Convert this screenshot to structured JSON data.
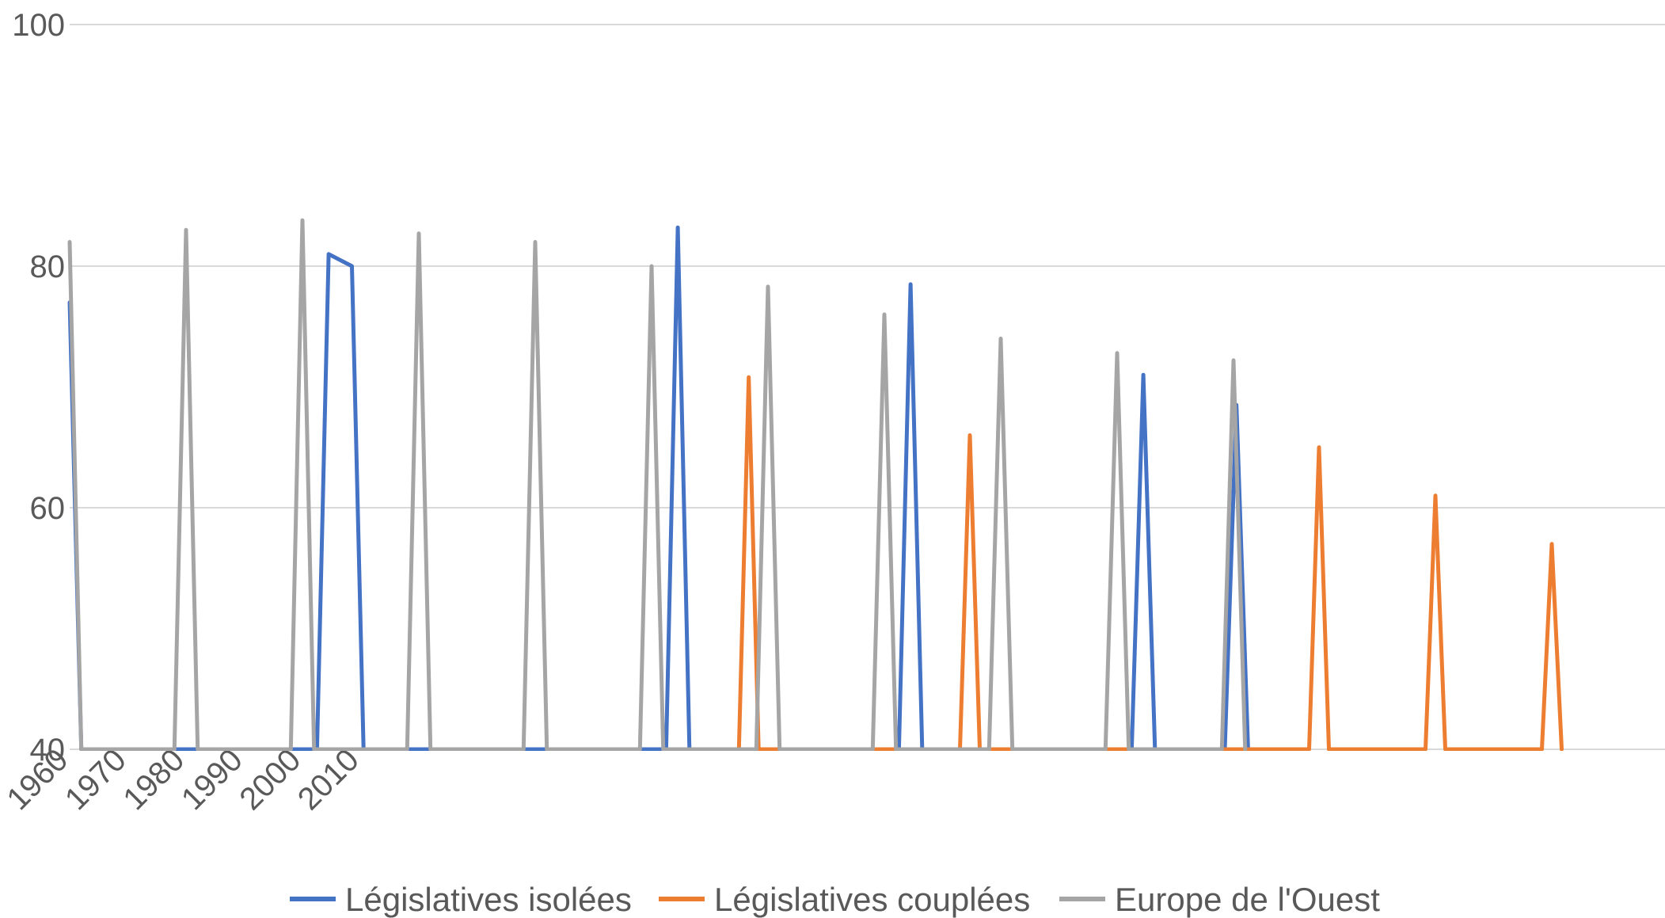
{
  "chart_data": {
    "type": "line",
    "title": "",
    "xlabel": "",
    "ylabel": "",
    "ylim": [
      40,
      100
    ],
    "y_ticks": [
      "40",
      "60",
      "80",
      "100"
    ],
    "x_tick_labels": [
      "1960",
      "1970",
      "1980",
      "1990",
      "2000",
      "2010"
    ],
    "grid": "horizontal",
    "legend_position": "bottom",
    "note": "Series drop to the axis minimum (40) between observations; values below list each rise-peak-fall spike.",
    "series": [
      {
        "name": "Législatives isolées",
        "color": "#4472c4",
        "points": [
          [
            1960.0,
            77
          ],
          [
            1962.0,
            40
          ],
          [
            2002.5,
            40
          ],
          [
            2004.5,
            81
          ],
          [
            2008.5,
            80
          ],
          [
            2010.5,
            40
          ],
          [
            2062.5,
            40
          ],
          [
            2064.5,
            83.2
          ],
          [
            2066.5,
            40
          ],
          [
            2102.5,
            40
          ],
          [
            2104.5,
            78.5
          ],
          [
            2106.5,
            40
          ],
          [
            2142.5,
            40
          ],
          [
            2144.5,
            71
          ],
          [
            2146.5,
            40
          ],
          [
            2158.5,
            40
          ],
          [
            2160.5,
            68.5
          ],
          [
            2162.5,
            40
          ]
        ]
      },
      {
        "name": "Législatives couplées",
        "color": "#ed7d31",
        "points": [
          [
            2075.0,
            40
          ],
          [
            2076.7,
            70.8
          ],
          [
            2078.4,
            40
          ],
          [
            2113.0,
            40
          ],
          [
            2114.7,
            66
          ],
          [
            2116.4,
            40
          ],
          [
            2173.0,
            40
          ],
          [
            2174.7,
            65
          ],
          [
            2176.4,
            40
          ],
          [
            2193.0,
            40
          ],
          [
            2194.7,
            61
          ],
          [
            2196.4,
            40
          ],
          [
            2213.0,
            40
          ],
          [
            2214.7,
            57
          ],
          [
            2216.4,
            40
          ]
        ]
      },
      {
        "name": "Europe de l'Ouest",
        "color": "#a5a5a5",
        "points": [
          [
            1960.0,
            82
          ],
          [
            1962.0,
            40
          ],
          [
            1978.0,
            40
          ],
          [
            1980.0,
            83
          ],
          [
            1982.0,
            40
          ],
          [
            1998.0,
            40
          ],
          [
            2000.0,
            83.8
          ],
          [
            2002.0,
            40
          ],
          [
            2018.0,
            40
          ],
          [
            2020.0,
            82.7
          ],
          [
            2022.0,
            40
          ],
          [
            2038.0,
            40
          ],
          [
            2040.0,
            82
          ],
          [
            2042.0,
            40
          ],
          [
            2058.0,
            40
          ],
          [
            2060.0,
            80
          ],
          [
            2062.0,
            40
          ],
          [
            2078.0,
            40
          ],
          [
            2080.0,
            78.3
          ],
          [
            2082.0,
            40
          ],
          [
            2098.0,
            40
          ],
          [
            2100.0,
            76
          ],
          [
            2102.0,
            40
          ],
          [
            2118.0,
            40
          ],
          [
            2120.0,
            74
          ],
          [
            2122.0,
            40
          ],
          [
            2138.0,
            40
          ],
          [
            2140.0,
            72.8
          ],
          [
            2142.0,
            40
          ],
          [
            2158.0,
            40
          ],
          [
            2160.0,
            72.2
          ],
          [
            2162.0,
            40
          ]
        ]
      }
    ]
  }
}
